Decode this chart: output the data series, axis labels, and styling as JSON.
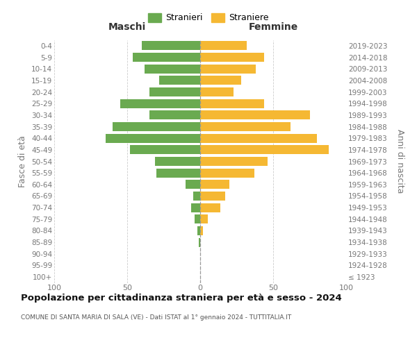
{
  "age_groups": [
    "100+",
    "95-99",
    "90-94",
    "85-89",
    "80-84",
    "75-79",
    "70-74",
    "65-69",
    "60-64",
    "55-59",
    "50-54",
    "45-49",
    "40-44",
    "35-39",
    "30-34",
    "25-29",
    "20-24",
    "15-19",
    "10-14",
    "5-9",
    "0-4"
  ],
  "birth_years": [
    "≤ 1923",
    "1924-1928",
    "1929-1933",
    "1934-1938",
    "1939-1943",
    "1944-1948",
    "1949-1953",
    "1954-1958",
    "1959-1963",
    "1964-1968",
    "1969-1973",
    "1974-1978",
    "1979-1983",
    "1984-1988",
    "1989-1993",
    "1994-1998",
    "1999-2003",
    "2004-2008",
    "2009-2013",
    "2014-2018",
    "2019-2023"
  ],
  "maschi": [
    0,
    0,
    0,
    1,
    2,
    4,
    6,
    5,
    10,
    30,
    31,
    48,
    65,
    60,
    35,
    55,
    35,
    28,
    38,
    46,
    40
  ],
  "femmine": [
    0,
    0,
    0,
    0,
    2,
    5,
    14,
    17,
    20,
    37,
    46,
    88,
    80,
    62,
    75,
    44,
    23,
    28,
    38,
    44,
    32
  ],
  "male_color": "#6aaa50",
  "female_color": "#f5b833",
  "grid_color": "#cccccc",
  "tick_color": "#777777",
  "title": "Popolazione per cittadinanza straniera per età e sesso - 2024",
  "subtitle": "COMUNE DI SANTA MARIA DI SALA (VE) - Dati ISTAT al 1° gennaio 2024 - TUTTITALIA.IT",
  "ylabel_left": "Fasce di età",
  "ylabel_right": "Anni di nascita",
  "maschi_label": "Stranieri",
  "femmine_label": "Straniere",
  "header_maschi": "Maschi",
  "header_femmine": "Femmine",
  "xlim": 100
}
